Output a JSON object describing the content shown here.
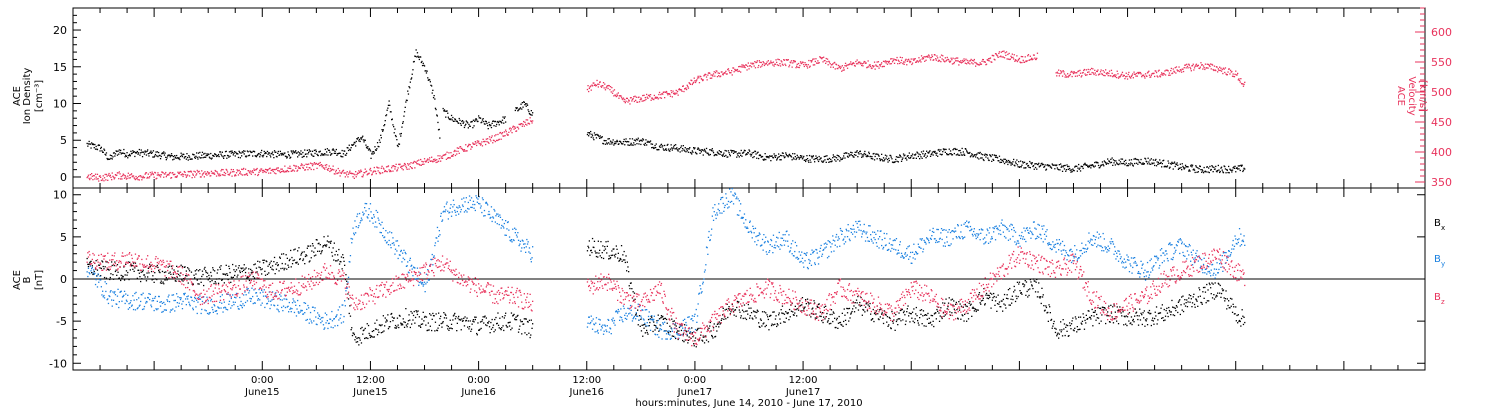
{
  "chart_data": [
    {
      "type": "scatter",
      "panel": "top",
      "ylabel_left": {
        "line1": "ACE",
        "line2": "Ion Density",
        "line3": "[cm⁻³]"
      },
      "ylabel_right": {
        "line1": "ACE",
        "line2": "Velocity",
        "line3": "[km/s]"
      },
      "left_ylim": [
        -1.5,
        23
      ],
      "left_yticks": [
        0,
        5,
        10,
        15,
        20
      ],
      "right_ylim": [
        340,
        640
      ],
      "right_yticks": [
        350,
        400,
        450,
        500,
        550,
        600
      ],
      "right_axis_color": "#e8335c",
      "series": [
        {
          "color": "#000000",
          "axis": "left",
          "segments": [
            {
              "x": [
                -19.5,
                -18,
                -17,
                -16,
                -15,
                -14,
                -12,
                -10,
                -8,
                -6,
                -4,
                -2,
                0,
                2,
                4,
                6,
                8,
                9,
                10,
                11,
                12,
                13,
                14,
                15,
                16,
                17,
                18,
                19,
                19.7
              ],
              "y": [
                4.5,
                4,
                2.5,
                3.6,
                3.2,
                3.4,
                3.2,
                2.8,
                2.9,
                3,
                3.1,
                3.2,
                3.3,
                3.1,
                3.2,
                3.4,
                3.6,
                3.2,
                4.5,
                5.5,
                3,
                5,
                10,
                4,
                11,
                17,
                15,
                11,
                5
              ]
            },
            {
              "x": [
                20,
                21,
                22,
                23,
                24,
                25,
                26,
                27
              ],
              "y": [
                9,
                8,
                7.5,
                7,
                8,
                7,
                7.5,
                8
              ]
            },
            {
              "x": [
                28,
                29,
                30
              ],
              "y": [
                9,
                10,
                8.5
              ]
            },
            {
              "x": [
                36,
                37,
                38,
                40,
                42,
                44,
                46,
                48,
                50,
                52,
                54,
                56,
                58,
                60,
                62,
                64,
                66,
                68,
                70,
                72,
                74,
                76,
                78,
                80,
                82,
                84,
                86,
                88,
                90,
                92,
                94,
                96,
                98,
                100,
                102,
                104,
                106,
                108,
                109
              ],
              "y": [
                6,
                5.5,
                5,
                4.8,
                5,
                4.2,
                4,
                3.6,
                3.5,
                3.2,
                3.3,
                2.7,
                3,
                2.6,
                2.5,
                2.7,
                3.3,
                2.8,
                2.5,
                3,
                3.2,
                3.6,
                3.5,
                2.8,
                2.4,
                1.8,
                1.6,
                1.4,
                1.2,
                1.6,
                2.2,
                2,
                2.3,
                1.9,
                1.4,
                1.1,
                1.2,
                1.1,
                1.3
              ]
            }
          ]
        },
        {
          "color": "#e8335c",
          "axis": "right",
          "segments": [
            {
              "x": [
                -19.5,
                -18,
                -16,
                -14,
                -12,
                -10,
                -8,
                -6,
                -4,
                -2,
                0,
                2,
                4,
                6,
                7,
                8,
                9,
                10,
                12,
                14,
                16,
                18,
                20,
                22,
                24,
                26,
                28,
                30
              ],
              "y": [
                360,
                358,
                362,
                360,
                362,
                363,
                364,
                366,
                366,
                368,
                368,
                372,
                375,
                378,
                377,
                370,
                365,
                362,
                369,
                373,
                377,
                385,
                392,
                405,
                415,
                425,
                440,
                455
              ]
            },
            {
              "x": [
                36,
                37,
                38,
                39,
                40,
                42,
                44,
                46,
                48,
                50,
                52,
                54,
                56,
                58,
                60,
                62,
                64,
                66,
                68,
                70,
                72,
                74,
                76,
                78,
                80,
                82,
                84,
                86
              ],
              "y": [
                505,
                515,
                510,
                500,
                485,
                490,
                495,
                500,
                520,
                530,
                535,
                545,
                550,
                550,
                545,
                555,
                540,
                550,
                545,
                555,
                550,
                560,
                555,
                550,
                550,
                565,
                555,
                560
              ]
            },
            {
              "x": [
                88,
                90,
                92,
                94,
                96,
                98,
                100,
                102,
                104,
                106,
                108,
                109
              ],
              "y": [
                532,
                530,
                535,
                532,
                528,
                530,
                532,
                540,
                545,
                540,
                530,
                510
              ]
            }
          ]
        }
      ]
    },
    {
      "type": "scatter",
      "panel": "bottom",
      "ylabel_left": {
        "line1": "ACE",
        "line2": "B",
        "line3": "[nT]"
      },
      "ylim": [
        -10.8,
        10.8
      ],
      "yticks": [
        -10,
        -5,
        0,
        5,
        10
      ],
      "zero_line": true,
      "series": [
        {
          "name": "B",
          "subscript": "x",
          "color": "#000000",
          "segments": [
            {
              "x": [
                -19.5,
                -17,
                -15,
                -13,
                -11,
                -9,
                -7,
                -5,
                -3,
                -1,
                1,
                3,
                5,
                7,
                9,
                10,
                12,
                14,
                16,
                18,
                20,
                22,
                24,
                26,
                28,
                30
              ],
              "y": [
                1.5,
                1,
                1,
                0.8,
                0.5,
                0.7,
                0.3,
                0.5,
                0.8,
                1,
                1.5,
                2.5,
                3,
                4.5,
                2,
                -7,
                -6,
                -5,
                -4.5,
                -5,
                -5,
                -5,
                -5.5,
                -5,
                -5,
                -6
              ]
            },
            {
              "x": [
                36,
                38,
                40,
                42,
                44,
                46,
                48,
                50,
                52,
                54,
                56,
                58,
                60,
                62,
                64,
                66,
                68,
                70,
                72,
                74,
                76,
                78,
                80,
                82,
                84,
                86,
                88,
                90,
                92,
                94,
                96,
                98,
                100,
                102,
                104,
                106,
                108,
                109
              ],
              "y": [
                4,
                3.5,
                3,
                -6,
                -5,
                -6,
                -7,
                -6,
                -3,
                -4,
                -5,
                -4,
                -3,
                -4,
                -5,
                -3,
                -4,
                -5,
                -4,
                -5,
                -3,
                -4,
                -2,
                -3,
                -1,
                -1,
                -6,
                -5.5,
                -4.5,
                -4,
                -4.5,
                -4.5,
                -4,
                -3,
                -2,
                -1,
                -4,
                -5
              ]
            }
          ]
        },
        {
          "name": "B",
          "subscript": "y",
          "color": "#1a80e0",
          "segments": [
            {
              "x": [
                -19.5,
                -17,
                -15,
                -13,
                -11,
                -9,
                -7,
                -5,
                -3,
                -1,
                1,
                3,
                5,
                7,
                9,
                10,
                11,
                12,
                14,
                16,
                18,
                20,
                22,
                24,
                26,
                28,
                30
              ],
              "y": [
                1.5,
                -2,
                -2.5,
                -2.5,
                -3,
                -2.5,
                -3,
                -3,
                -2.5,
                -2,
                -2.5,
                -3,
                -4,
                -5,
                -4,
                6,
                8,
                8,
                5,
                2,
                -1,
                8,
                9,
                9,
                7,
                5,
                3
              ]
            },
            {
              "x": [
                36,
                38,
                40,
                42,
                44,
                46,
                48,
                50,
                52,
                54,
                56,
                58,
                60,
                62,
                64,
                66,
                68,
                70,
                72,
                74,
                76,
                78,
                80,
                82,
                84,
                86,
                88,
                90,
                92,
                94,
                96,
                98,
                100,
                102,
                104,
                106,
                108,
                109
              ],
              "y": [
                -5,
                -6,
                -4,
                -4,
                -6,
                -6,
                -5,
                8,
                10,
                6,
                4,
                5,
                2,
                3,
                5,
                6,
                5,
                4,
                3,
                5,
                5,
                6,
                5,
                6,
                5,
                6,
                4,
                3,
                5,
                4,
                2,
                1,
                3,
                4,
                2,
                1,
                5,
                5
              ]
            }
          ]
        },
        {
          "name": "B",
          "subscript": "z",
          "color": "#e8335c",
          "segments": [
            {
              "x": [
                -19.5,
                -17,
                -15,
                -13,
                -11,
                -9,
                -7,
                -5,
                -3,
                -1,
                1,
                3,
                5,
                7,
                9,
                10,
                12,
                14,
                16,
                18,
                20,
                22,
                24,
                26,
                28,
                30
              ],
              "y": [
                2.5,
                2,
                2.5,
                2,
                1.5,
                0.5,
                -2,
                -1.5,
                -1,
                0,
                -1.5,
                -1,
                -0.5,
                1,
                0,
                -3,
                -2,
                -1,
                0,
                1,
                2,
                0,
                -1,
                -2,
                -2,
                -3
              ]
            },
            {
              "x": [
                36,
                38,
                40,
                42,
                44,
                46,
                48,
                50,
                52,
                54,
                56,
                58,
                60,
                62,
                64,
                66,
                68,
                70,
                72,
                74,
                76,
                78,
                80,
                82,
                84,
                86,
                88,
                90,
                92,
                94,
                96,
                98,
                100,
                102,
                104,
                106,
                108,
                109
              ],
              "y": [
                -1,
                0,
                -2,
                -3,
                -1,
                -6,
                -7,
                -5,
                -3,
                -2,
                -1,
                -2,
                -3,
                -4,
                -1,
                -2,
                -3,
                -4,
                -1,
                -2,
                -4,
                -3,
                -1,
                1,
                3,
                2,
                1,
                2,
                -2,
                -4,
                -3,
                -2,
                0,
                1,
                2,
                3,
                1,
                0
              ]
            }
          ]
        }
      ]
    }
  ],
  "xaxis": {
    "range_hours": [
      -21,
      129
    ],
    "major_ticks": [
      {
        "hour": 0,
        "time": "0:00",
        "day": "June15"
      },
      {
        "hour": 12,
        "time": "12:00",
        "day": "June15"
      },
      {
        "hour": 24,
        "time": "0:00",
        "day": "June16"
      },
      {
        "hour": 36,
        "time": "12:00",
        "day": "June16"
      },
      {
        "hour": 48,
        "time": "0:00",
        "day": "June17"
      },
      {
        "hour": 60,
        "time": "12:00",
        "day": "June17"
      }
    ],
    "minor_step_hours": 3,
    "title": "hours:minutes, June 14, 2010 - June 17, 2010"
  },
  "legend": [
    {
      "name": "B",
      "subscript": "x",
      "color": "#000000"
    },
    {
      "name": "B",
      "subscript": "y",
      "color": "#1a80e0"
    },
    {
      "name": "B",
      "subscript": "z",
      "color": "#e8335c"
    }
  ]
}
